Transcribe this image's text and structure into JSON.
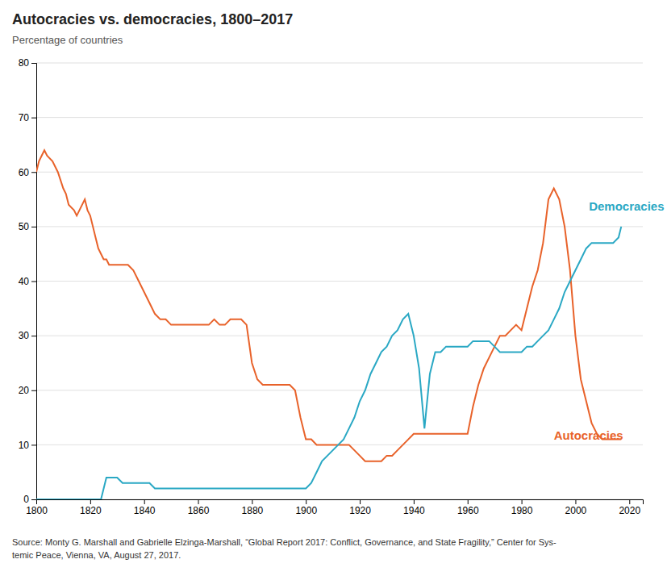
{
  "chart_data": {
    "type": "line",
    "title": "Autocracies vs. democracies, 1800–2017",
    "subtitle": "Percentage of countries",
    "source": [
      "Source: Monty G. Marshall and Gabrielle Elzinga-Marshall, “Global Report 2017: Conflict, Governance, and State Fragility,” Center for Sys-",
      "temic Peace, Vienna, VA, August 27, 2017."
    ],
    "xlim": [
      1800,
      2025
    ],
    "ylim": [
      0,
      80
    ],
    "xticks": [
      1800,
      1820,
      1840,
      1860,
      1880,
      1900,
      1920,
      1940,
      1960,
      1980,
      2000,
      2020
    ],
    "yticks": [
      0,
      10,
      20,
      30,
      40,
      50,
      60,
      70,
      80
    ],
    "grid": "y",
    "series": [
      {
        "color": "#E8622A",
        "x": [
          1800,
          1801,
          1802,
          1803,
          1804,
          1806,
          1808,
          1810,
          1811,
          1812,
          1814,
          1815,
          1816,
          1817,
          1818,
          1819,
          1820,
          1821,
          1822,
          1823,
          1824,
          1825,
          1826,
          1827,
          1828,
          1830,
          1832,
          1834,
          1836,
          1838,
          1840,
          1842,
          1844,
          1846,
          1848,
          1850,
          1852,
          1854,
          1856,
          1858,
          1860,
          1862,
          1864,
          1866,
          1868,
          1870,
          1872,
          1874,
          1876,
          1878,
          1880,
          1882,
          1884,
          1886,
          1888,
          1890,
          1892,
          1894,
          1896,
          1898,
          1900,
          1902,
          1904,
          1906,
          1908,
          1910,
          1912,
          1914,
          1916,
          1918,
          1920,
          1922,
          1924,
          1926,
          1928,
          1930,
          1932,
          1934,
          1936,
          1938,
          1940,
          1942,
          1944,
          1946,
          1948,
          1950,
          1952,
          1954,
          1956,
          1958,
          1960,
          1962,
          1964,
          1966,
          1968,
          1970,
          1972,
          1974,
          1976,
          1978,
          1980,
          1982,
          1984,
          1986,
          1988,
          1990,
          1992,
          1994,
          1996,
          1998,
          2000,
          2002,
          2004,
          2006,
          2008,
          2010,
          2012,
          2014,
          2016,
          2017
        ],
        "values": [
          60,
          62,
          63,
          64,
          63,
          62,
          60,
          57,
          56,
          54,
          53,
          52,
          53,
          54,
          55,
          53,
          52,
          50,
          48,
          46,
          45,
          44,
          44,
          43,
          43,
          43,
          43,
          43,
          42,
          40,
          38,
          36,
          34,
          33,
          33,
          32,
          32,
          32,
          32,
          32,
          32,
          32,
          32,
          33,
          32,
          32,
          33,
          33,
          33,
          32,
          25,
          22,
          21,
          21,
          21,
          21,
          21,
          21,
          20,
          15,
          11,
          11,
          10,
          10,
          10,
          10,
          10,
          10,
          10,
          9,
          8,
          7,
          7,
          7,
          7,
          8,
          8,
          9,
          10,
          11,
          12,
          12,
          12,
          12,
          12,
          12,
          12,
          12,
          12,
          12,
          12,
          17,
          21,
          24,
          26,
          28,
          30,
          30,
          31,
          32,
          31,
          35,
          39,
          42,
          47,
          55,
          57,
          55,
          50,
          42,
          30,
          22,
          18,
          14,
          12,
          11,
          11,
          11,
          11,
          11
        ]
      },
      {
        "color": "#2AA8C4",
        "x": [
          1800,
          1801,
          1802,
          1803,
          1805,
          1808,
          1810,
          1811,
          1812,
          1815,
          1816,
          1818,
          1820,
          1822,
          1824,
          1826,
          1828,
          1830,
          1832,
          1834,
          1836,
          1838,
          1840,
          1842,
          1844,
          1846,
          1848,
          1850,
          1852,
          1854,
          1856,
          1858,
          1860,
          1862,
          1864,
          1866,
          1868,
          1870,
          1872,
          1874,
          1876,
          1878,
          1880,
          1882,
          1884,
          1886,
          1888,
          1890,
          1892,
          1894,
          1896,
          1898,
          1900,
          1902,
          1904,
          1906,
          1908,
          1910,
          1912,
          1914,
          1916,
          1918,
          1920,
          1922,
          1924,
          1926,
          1928,
          1930,
          1932,
          1934,
          1936,
          1938,
          1940,
          1942,
          1944,
          1946,
          1948,
          1950,
          1952,
          1954,
          1956,
          1958,
          1960,
          1962,
          1964,
          1966,
          1968,
          1970,
          1972,
          1974,
          1976,
          1978,
          1980,
          1982,
          1984,
          1986,
          1988,
          1990,
          1992,
          1994,
          1996,
          1998,
          2000,
          2002,
          2004,
          2006,
          2008,
          2010,
          2012,
          2014,
          2016,
          2017
        ],
        "values": [
          0,
          0,
          0,
          0,
          0,
          0,
          0,
          0,
          0,
          0,
          0,
          0,
          0,
          0,
          0,
          4,
          4,
          4,
          3,
          3,
          3,
          3,
          3,
          3,
          2,
          2,
          2,
          2,
          2,
          2,
          2,
          2,
          2,
          2,
          2,
          2,
          2,
          2,
          2,
          2,
          2,
          2,
          2,
          2,
          2,
          2,
          2,
          2,
          2,
          2,
          2,
          2,
          2,
          3,
          5,
          7,
          8,
          9,
          10,
          11,
          13,
          15,
          18,
          20,
          23,
          25,
          27,
          28,
          30,
          31,
          33,
          34,
          30,
          24,
          13,
          23,
          27,
          27,
          28,
          28,
          28,
          28,
          28,
          29,
          29,
          29,
          29,
          28,
          27,
          27,
          27,
          27,
          27,
          28,
          28,
          29,
          30,
          31,
          33,
          35,
          38,
          40,
          42,
          44,
          46,
          47,
          47,
          47,
          47,
          47,
          48,
          50
        ]
      }
    ],
    "annotations": [
      {
        "text": "Democracies",
        "x": 2005,
        "y": 53,
        "color": "#2AA8C4"
      },
      {
        "text": "Autocracies",
        "x": 1992,
        "y": 11,
        "color": "#E8622A"
      }
    ]
  }
}
